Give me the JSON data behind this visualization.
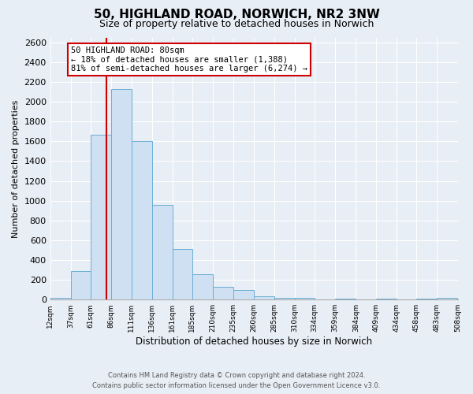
{
  "title": "50, HIGHLAND ROAD, NORWICH, NR2 3NW",
  "subtitle": "Size of property relative to detached houses in Norwich",
  "xlabel": "Distribution of detached houses by size in Norwich",
  "ylabel": "Number of detached properties",
  "bar_color": "#cfe0f2",
  "bar_edge_color": "#6aaed6",
  "fig_bg_color": "#e8eef5",
  "ax_bg_color": "#e8eef5",
  "grid_color": "#ffffff",
  "bins": [
    12,
    37,
    61,
    86,
    111,
    136,
    161,
    185,
    210,
    235,
    260,
    285,
    310,
    334,
    359,
    384,
    409,
    434,
    458,
    483,
    508
  ],
  "counts": [
    20,
    290,
    1670,
    2130,
    1600,
    960,
    510,
    255,
    130,
    100,
    35,
    20,
    15,
    5,
    10,
    5,
    10,
    5,
    10,
    15
  ],
  "tick_labels": [
    "12sqm",
    "37sqm",
    "61sqm",
    "86sqm",
    "111sqm",
    "136sqm",
    "161sqm",
    "185sqm",
    "210sqm",
    "235sqm",
    "260sqm",
    "285sqm",
    "310sqm",
    "334sqm",
    "359sqm",
    "384sqm",
    "409sqm",
    "434sqm",
    "458sqm",
    "483sqm",
    "508sqm"
  ],
  "ylim": [
    0,
    2650
  ],
  "yticks": [
    0,
    200,
    400,
    600,
    800,
    1000,
    1200,
    1400,
    1600,
    1800,
    2000,
    2200,
    2400,
    2600
  ],
  "vline_x": 80,
  "vline_color": "#cc0000",
  "annotation_title": "50 HIGHLAND ROAD: 80sqm",
  "annotation_line1": "← 18% of detached houses are smaller (1,388)",
  "annotation_line2": "81% of semi-detached houses are larger (6,274) →",
  "annotation_box_facecolor": "#ffffff",
  "annotation_box_edgecolor": "#cc0000",
  "footer1": "Contains HM Land Registry data © Crown copyright and database right 2024.",
  "footer2": "Contains public sector information licensed under the Open Government Licence v3.0."
}
